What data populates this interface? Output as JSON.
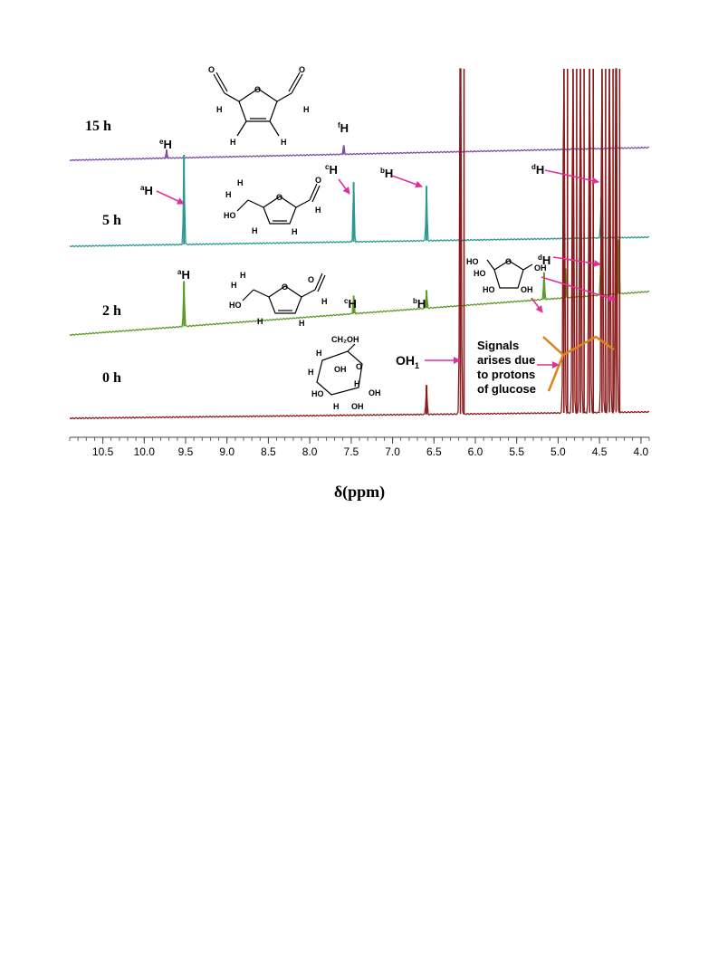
{
  "chart_data": {
    "type": "line",
    "xlabel": "δ(ppm)",
    "xlim": [
      10.9,
      3.9
    ],
    "x_reversed": true,
    "x_ticks": [
      "10.5",
      "10.0",
      "9.5",
      "9.0",
      "8.5",
      "8.0",
      "7.5",
      "7.0",
      "6.5",
      "6.0",
      "5.5",
      "5.0",
      "4.5",
      "4.0"
    ],
    "series": [
      {
        "name": "15 h",
        "color": "#7b4fa8",
        "peaks": [
          {
            "x": 9.73,
            "h": 0.9,
            "label": "H",
            "sup": "e"
          },
          {
            "x": 7.59,
            "h": 1.0,
            "label": "H",
            "sup": "f"
          }
        ]
      },
      {
        "name": "5 h",
        "color": "#2a9a90",
        "peaks": [
          {
            "x": 9.52,
            "h": 9.0,
            "label": "H",
            "sup": "a"
          },
          {
            "x": 7.47,
            "h": 6.0,
            "label": "H",
            "sup": "c"
          },
          {
            "x": 6.59,
            "h": 5.5,
            "label": "H",
            "sup": "b"
          },
          {
            "x": 4.48,
            "h": 4.0,
            "label": "H",
            "sup": "d"
          }
        ]
      },
      {
        "name": "2 h",
        "color": "#5a9a28",
        "peaks": [
          {
            "x": 9.52,
            "h": 2.0,
            "label": "H",
            "sup": "a"
          },
          {
            "x": 7.47,
            "h": 0.8,
            "label": "H",
            "sup": "c"
          },
          {
            "x": 6.59,
            "h": 0.8,
            "label": "H",
            "sup": "b"
          },
          {
            "x": 5.17,
            "h": 1.2
          },
          {
            "x": 4.91,
            "h": 1.3
          },
          {
            "x": 4.48,
            "h": 3.0
          },
          {
            "x": 4.27,
            "h": 2.4,
            "label": "H",
            "sup": "d"
          }
        ]
      },
      {
        "name": "0 h",
        "color": "#8b1a1a",
        "peaks": [
          {
            "x": 6.59,
            "h": 1.3
          },
          {
            "x": 6.18,
            "h": 20.0,
            "label": "OH₁"
          },
          {
            "x": 4.93,
            "h": 20.0
          },
          {
            "x": 4.82,
            "h": 20.0
          },
          {
            "x": 4.73,
            "h": 20.0
          },
          {
            "x": 4.62,
            "h": 20.0
          },
          {
            "x": 4.47,
            "h": 20.0
          },
          {
            "x": 4.38,
            "h": 20.0
          },
          {
            "x": 4.3,
            "h": 20.0
          }
        ]
      }
    ]
  },
  "labels": {
    "t15": "15 h",
    "t5": "5 h",
    "t2": "2 h",
    "t0": "0 h",
    "oh1": "OH",
    "oh1_sub": "1",
    "glucose_note": [
      "Signals",
      "arises due",
      "to protons",
      "of glucose"
    ],
    "H": "H",
    "sup_a": "a",
    "sup_b": "b",
    "sup_c": "c",
    "sup_d": "d",
    "sup_e": "e",
    "sup_f": "f"
  },
  "colors": {
    "arrow": "#e0309a",
    "bracket": "#e0811e"
  }
}
